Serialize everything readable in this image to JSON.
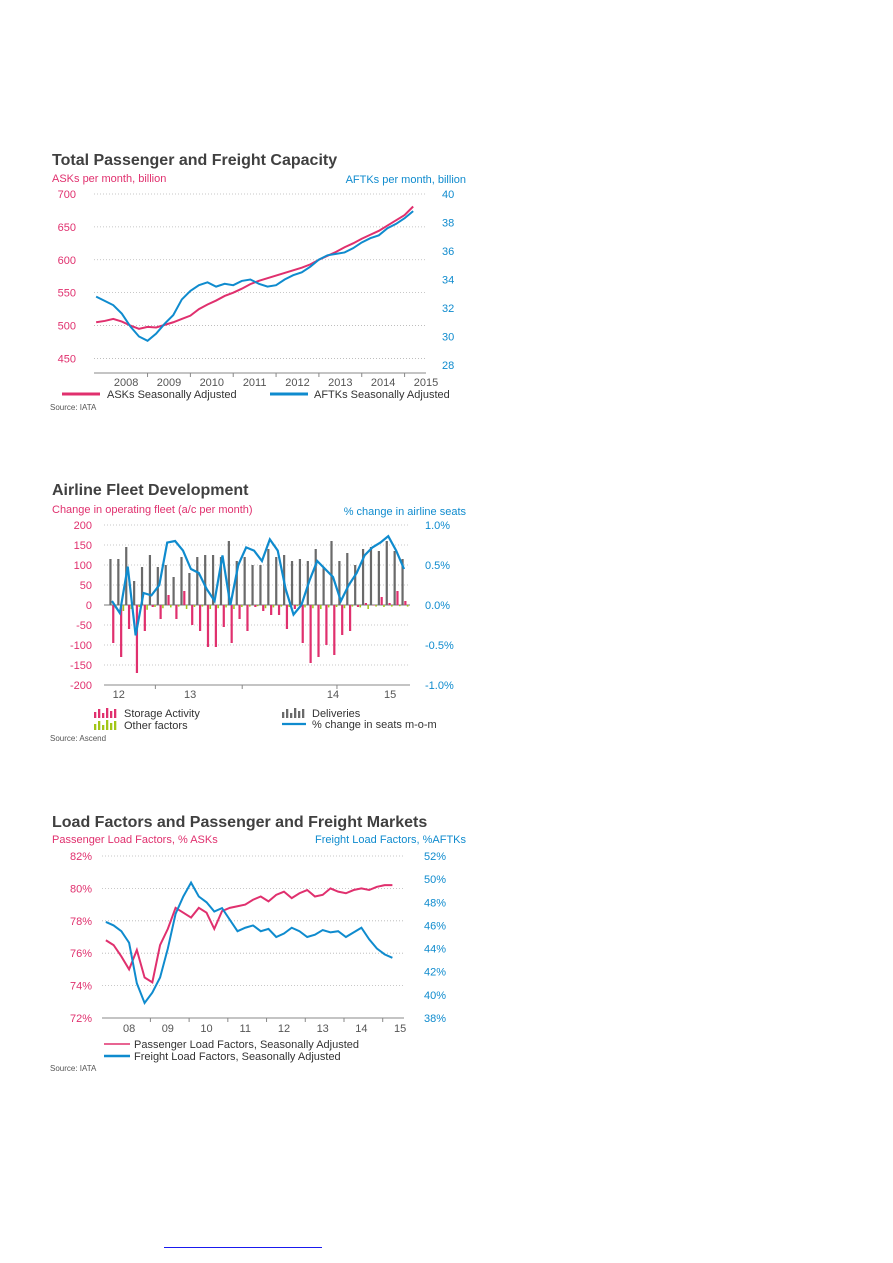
{
  "colors": {
    "pink": "#e0306e",
    "blue": "#0f8bce",
    "grey": "#6a6a6a",
    "green": "#a2c617",
    "text": "#404040",
    "tick": "#555555"
  },
  "chart_data": [
    {
      "type": "line",
      "title": "Total Passenger and Freight Capacity",
      "ylabel": "ASKs per month, billion",
      "y2label": "AFTKs per month, billion",
      "x_ticks": [
        "2008",
        "2009",
        "2010",
        "2011",
        "2012",
        "2013",
        "2014",
        "2015"
      ],
      "y_ticks": [
        "700",
        "650",
        "600",
        "550",
        "500",
        "450"
      ],
      "y2_ticks": [
        "40",
        "38",
        "36",
        "34",
        "32",
        "30",
        "28"
      ],
      "ylim": [
        440,
        700
      ],
      "y2lim": [
        28,
        40
      ],
      "xlim": [
        2007.75,
        2015.5
      ],
      "x": [
        2007.8,
        2008.0,
        2008.2,
        2008.4,
        2008.6,
        2008.8,
        2009.0,
        2009.2,
        2009.4,
        2009.6,
        2009.8,
        2010.0,
        2010.2,
        2010.4,
        2010.6,
        2010.8,
        2011.0,
        2011.2,
        2011.4,
        2011.6,
        2011.8,
        2012.0,
        2012.2,
        2012.4,
        2012.6,
        2012.8,
        2013.0,
        2013.2,
        2013.4,
        2013.6,
        2013.8,
        2014.0,
        2014.2,
        2014.4,
        2014.6,
        2014.8,
        2015.0,
        2015.2
      ],
      "series": [
        {
          "name": "ASKs Seasonally Adjusted",
          "axis": "left",
          "values": [
            505,
            507,
            510,
            506,
            500,
            495,
            498,
            497,
            501,
            505,
            510,
            515,
            525,
            532,
            538,
            545,
            550,
            556,
            563,
            568,
            572,
            576,
            580,
            584,
            588,
            593,
            600,
            606,
            612,
            619,
            625,
            632,
            638,
            644,
            652,
            660,
            668,
            681
          ]
        },
        {
          "name": "AFTKs Seasonally Adjusted",
          "axis": "right",
          "values": [
            32.8,
            32.5,
            32.2,
            31.6,
            30.7,
            30.0,
            29.7,
            30.2,
            30.9,
            31.5,
            32.6,
            33.2,
            33.6,
            33.8,
            33.5,
            33.7,
            33.6,
            33.9,
            34.0,
            33.7,
            33.5,
            33.6,
            34.0,
            34.3,
            34.5,
            34.9,
            35.4,
            35.7,
            35.8,
            35.9,
            36.2,
            36.6,
            36.9,
            37.1,
            37.6,
            37.9,
            38.3,
            38.8
          ]
        }
      ],
      "legend": "bottom",
      "source": "Source: IATA"
    },
    {
      "type": "bar",
      "title": "Airline Fleet Development",
      "ylabel": "Change in operating fleet (a/c per month)",
      "y2label": "% change in airline seats",
      "x_ticks": [
        "12",
        "13",
        "14",
        "15"
      ],
      "y_ticks": [
        "200",
        "150",
        "100",
        "50",
        "0",
        "-50",
        "-100",
        "-150",
        "-200"
      ],
      "y2_ticks": [
        "1.0%",
        "0.5%",
        "0.0%",
        "-0.5%",
        "-1.0%"
      ],
      "ylim": [
        -200,
        200
      ],
      "y2lim": [
        -1.0,
        1.0
      ],
      "series": [
        {
          "name": "Deliveries",
          "values": [
            115,
            115,
            145,
            60,
            95,
            125,
            95,
            100,
            70,
            120,
            80,
            120,
            125,
            125,
            120,
            160,
            110,
            120,
            100,
            100,
            140,
            120,
            125,
            110,
            115,
            110,
            140,
            95,
            160,
            110,
            130,
            100,
            140,
            145,
            135,
            160,
            135,
            115
          ]
        },
        {
          "name": "Storage Activity",
          "values": [
            -95,
            -130,
            -60,
            -170,
            -65,
            -5,
            -35,
            25,
            -35,
            35,
            -50,
            -65,
            -105,
            -105,
            -55,
            -95,
            -35,
            -65,
            -5,
            -15,
            -25,
            -25,
            -60,
            -10,
            -95,
            -145,
            -130,
            -100,
            -125,
            -75,
            -65,
            -5,
            5,
            0,
            20,
            5,
            35,
            10
          ]
        },
        {
          "name": "Other factors",
          "values": [
            -8,
            -15,
            -10,
            -5,
            -12,
            -5,
            -8,
            -6,
            -4,
            -10,
            -5,
            -4,
            -10,
            -8,
            -6,
            -10,
            -5,
            -4,
            -3,
            -8,
            -6,
            -4,
            -5,
            -3,
            -6,
            -8,
            -10,
            -6,
            -5,
            -8,
            -4,
            -6,
            -10,
            -4,
            -5,
            -4,
            -3,
            -4
          ]
        },
        {
          "name": "% change in seats m-o-m",
          "axis": "right",
          "values": [
            0.05,
            -0.1,
            0.48,
            -0.38,
            0.15,
            0.12,
            0.25,
            0.78,
            0.8,
            0.68,
            0.45,
            0.4,
            0.2,
            0.05,
            0.62,
            0.0,
            0.5,
            0.72,
            0.68,
            0.55,
            0.82,
            0.68,
            0.2,
            -0.12,
            0.0,
            0.3,
            0.55,
            0.45,
            0.35,
            0.05,
            0.25,
            0.4,
            0.62,
            0.72,
            0.78,
            0.86,
            0.68,
            0.45
          ]
        }
      ],
      "legend": "bottom",
      "source": "Source: Ascend"
    },
    {
      "type": "line",
      "title": "Load Factors and Passenger and Freight Markets",
      "ylabel": "Passenger Load Factors, % ASKs",
      "y2label": "Freight Load Factors, %AFTKs",
      "x_ticks": [
        "08",
        "09",
        "10",
        "11",
        "12",
        "13",
        "14",
        "15"
      ],
      "y_ticks": [
        "82%",
        "80%",
        "78%",
        "76%",
        "74%",
        "72%"
      ],
      "y2_ticks": [
        "52%",
        "50%",
        "48%",
        "46%",
        "44%",
        "42%",
        "40%",
        "38%"
      ],
      "ylim": [
        72,
        82
      ],
      "y2lim": [
        38,
        52
      ],
      "xlim": [
        2007.7,
        2015.5
      ],
      "x": [
        2007.8,
        2008.0,
        2008.2,
        2008.4,
        2008.6,
        2008.8,
        2009.0,
        2009.2,
        2009.4,
        2009.6,
        2009.8,
        2010.0,
        2010.2,
        2010.4,
        2010.6,
        2010.8,
        2011.0,
        2011.2,
        2011.4,
        2011.6,
        2011.8,
        2012.0,
        2012.2,
        2012.4,
        2012.6,
        2012.8,
        2013.0,
        2013.2,
        2013.4,
        2013.6,
        2013.8,
        2014.0,
        2014.2,
        2014.4,
        2014.6,
        2014.8,
        2015.0,
        2015.2
      ],
      "series": [
        {
          "name": "Passenger Load Factors, Seasonally Adjusted",
          "axis": "left",
          "values": [
            76.8,
            76.5,
            75.8,
            75.0,
            76.2,
            74.5,
            74.2,
            76.5,
            77.5,
            78.8,
            78.5,
            78.2,
            78.8,
            78.5,
            77.5,
            78.6,
            78.8,
            78.9,
            79.0,
            79.3,
            79.5,
            79.2,
            79.6,
            79.8,
            79.4,
            79.7,
            79.9,
            79.5,
            79.6,
            80.0,
            79.8,
            79.7,
            79.9,
            80.0,
            79.9,
            80.1,
            80.2,
            80.2
          ]
        },
        {
          "name": "Freight Load Factors, Seasonally Adjusted",
          "axis": "right",
          "values": [
            46.3,
            46.0,
            45.5,
            44.5,
            41.0,
            39.3,
            40.2,
            41.5,
            44.0,
            47.0,
            48.5,
            49.7,
            48.5,
            48.0,
            47.2,
            47.5,
            46.5,
            45.5,
            45.8,
            46.0,
            45.5,
            45.7,
            45.0,
            45.3,
            45.8,
            45.5,
            45.0,
            45.2,
            45.6,
            45.4,
            45.5,
            45.0,
            45.4,
            45.8,
            44.8,
            44.0,
            43.5,
            43.2
          ]
        }
      ],
      "legend": "bottom",
      "source": "Source: IATA"
    }
  ]
}
